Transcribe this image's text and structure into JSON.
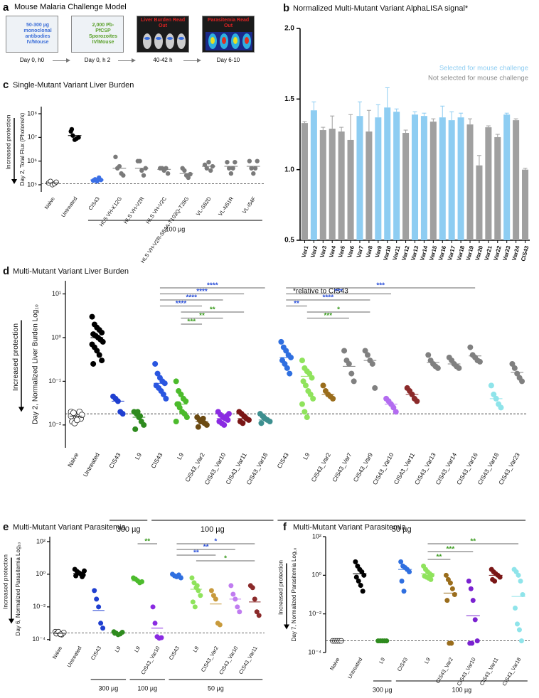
{
  "diagram": {
    "panel": "a",
    "title": "Mouse Malaria Challenge Model",
    "steps": [
      {
        "text": "50-300 µg monoclonal antibodies IV/Mouse",
        "time": "Day 0, h0"
      },
      {
        "text": "2,000 Pb-PfCSP Sporozoites IV/Mouse",
        "time": "Day 0, h 2"
      },
      {
        "text": "Liver Burden Read Out",
        "time": "40-42 h"
      },
      {
        "text": "Parasitemia Read Out",
        "time": "Day 6-10"
      }
    ]
  },
  "chart_data": [
    {
      "type": "bar",
      "panel": "b",
      "title": "Normalized Multi-Mutant Variant AlphaLISA signal*",
      "categories": [
        "Var1",
        "Var2",
        "Var3",
        "Var4",
        "Var5",
        "Var6",
        "Var7",
        "Var8",
        "Var9",
        "Var10",
        "Var11",
        "Var12",
        "Var13",
        "Var14",
        "Var15",
        "Var16",
        "Var17",
        "Var18",
        "Var19",
        "Var20",
        "Var21",
        "Var22",
        "Var23",
        "Var24",
        "CIS43"
      ],
      "values": [
        1.33,
        1.42,
        1.28,
        1.29,
        1.27,
        1.21,
        1.38,
        1.27,
        1.37,
        1.44,
        1.41,
        1.26,
        1.39,
        1.38,
        1.34,
        1.37,
        1.35,
        1.37,
        1.32,
        1.03,
        1.3,
        1.23,
        1.39,
        1.35,
        1.0
      ],
      "errors": [
        0.01,
        0.06,
        0.02,
        0.09,
        0.03,
        0.18,
        0.1,
        0.15,
        0.09,
        0.14,
        0.02,
        0.02,
        0.02,
        0.02,
        0.02,
        0.08,
        0.06,
        0.03,
        0.04,
        0.07,
        0.01,
        0.02,
        0.01,
        0.01,
        0.01
      ],
      "colors": [
        "#a0a0a0",
        "#8ecdf2",
        "#a0a0a0",
        "#a0a0a0",
        "#a0a0a0",
        "#a0a0a0",
        "#8ecdf2",
        "#a0a0a0",
        "#8ecdf2",
        "#8ecdf2",
        "#8ecdf2",
        "#a0a0a0",
        "#8ecdf2",
        "#8ecdf2",
        "#a0a0a0",
        "#8ecdf2",
        "#8ecdf2",
        "#8ecdf2",
        "#a0a0a0",
        "#a0a0a0",
        "#a0a0a0",
        "#a0a0a0",
        "#8ecdf2",
        "#a0a0a0",
        "#a0a0a0"
      ],
      "ylim": [
        0.5,
        2.0
      ],
      "yticks": [
        0.5,
        {
          "value": 1,
          "label": "1.0"
        },
        1.5,
        {
          "value": 2,
          "label": "2.0"
        }
      ],
      "legend": [
        {
          "name": "Selected for mouse challenge",
          "color": "#8ecdf2"
        },
        {
          "name": "Not selected for mouse challenge",
          "color": "#8a8a8a"
        }
      ],
      "footnote": "*relative to CIS43"
    },
    {
      "type": "strip",
      "panel": "c",
      "title": "Single-Mutant Variant Liver Burden",
      "ylabel": "Day 2, Total Flux (Photons/s)",
      "annotation": "Increased protection",
      "categories": [
        "Naive",
        "Untreated",
        "CIS43",
        "HLS VH-K12G",
        "HLS VH-V2R",
        "HLS VH-V2C",
        "HLS VH-V2R-S84A-T103Q-T28G",
        "VL-S82D",
        "VL-N51R",
        "VL-I54F"
      ],
      "points": [
        [
          120000,
          140000,
          100000,
          110000,
          130000
        ],
        [
          18000000,
          12000000,
          8000000,
          9000000,
          10000000,
          22000000
        ],
        [
          150000,
          170000,
          140000,
          200000,
          160000
        ],
        [
          1500000,
          500000,
          600000,
          300000,
          250000
        ],
        [
          1000000,
          1000000,
          400000,
          250000,
          500000
        ],
        [
          500000,
          500000,
          400000,
          500000,
          300000
        ],
        [
          500000,
          400000,
          250000,
          200000,
          280000
        ],
        [
          700000,
          500000,
          900000,
          400000,
          600000
        ],
        [
          900000,
          500000,
          300000,
          500000,
          900000
        ],
        [
          1000000,
          500000,
          300000,
          500000,
          1000000
        ]
      ],
      "means": [
        120000,
        12000000,
        160000,
        500000,
        500000,
        450000,
        300000,
        600000,
        600000,
        600000
      ],
      "colors": [
        "#ffffff",
        "#000000",
        "#3b6fe6",
        "#7a7a7a",
        "#7a7a7a",
        "#7a7a7a",
        "#7a7a7a",
        "#7a7a7a",
        "#7a7a7a",
        "#7a7a7a"
      ],
      "log_y": true,
      "ylim": [
        50000,
        200000000
      ],
      "yticks": [
        {
          "value": 100000,
          "label": "10⁵"
        },
        {
          "value": 1000000,
          "label": "10⁶"
        },
        {
          "value": 10000000,
          "label": "10⁷"
        },
        {
          "value": 100000000,
          "label": "10⁸"
        }
      ],
      "threshold": 110000,
      "dose_groups": [
        {
          "label": "100 µg",
          "from": 2,
          "to": 9
        }
      ],
      "comparisons": []
    },
    {
      "type": "strip",
      "panel": "d",
      "title": "Multi-Mutant Variant Liver Burden",
      "ylabel": "Day 2, Normalized Liver Burden Log₁₀",
      "annotation": "Increased protection",
      "categories": [
        "Naive",
        "Untreated",
        "CIS43",
        "L9",
        "CIS43",
        "L9",
        "CIS43_Var2",
        "CIS43_Var10",
        "CIS43_Var11",
        "CIS43_Var18",
        "CIS43",
        "L9",
        "CIS43_Var2",
        "CIS43_Var7",
        "CIS43_Var9",
        "CIS43_Var10",
        "CIS43_Var11",
        "CIS43_Var13",
        "CIS43_Var14",
        "CIS43_Var16",
        "CIS43_Var18",
        "CIS43_Var23"
      ],
      "points": [
        [
          0.02,
          0.018,
          0.016,
          0.015,
          0.014,
          0.012,
          0.011,
          0.013,
          0.02,
          0.017,
          0.016,
          0.019
        ],
        [
          3,
          2,
          1.7,
          1.5,
          1.3,
          1.2,
          1.1,
          1,
          0.9,
          0.8,
          0.7,
          0.6,
          0.5,
          0.4,
          0.3,
          0.25
        ],
        [
          0.045,
          0.04,
          0.035,
          0.02,
          0.018
        ],
        [
          0.02,
          0.018,
          0.015,
          0.012,
          0.01,
          0.008,
          0.02,
          0.016
        ],
        [
          0.25,
          0.15,
          0.12,
          0.1,
          0.09,
          0.08,
          0.07,
          0.06,
          0.05,
          0.04
        ],
        [
          0.1,
          0.06,
          0.05,
          0.04,
          0.035,
          0.03,
          0.025,
          0.02,
          0.018,
          0.015,
          0.012,
          0.03
        ],
        [
          0.015,
          0.013,
          0.012,
          0.011,
          0.01,
          0.009,
          0.012,
          0.014
        ],
        [
          0.02,
          0.017,
          0.015,
          0.014,
          0.013,
          0.012,
          0.011,
          0.01,
          0.016,
          0.018
        ],
        [
          0.02,
          0.018,
          0.016,
          0.014,
          0.013,
          0.012,
          0.011,
          0.015
        ],
        [
          0.018,
          0.016,
          0.014,
          0.013,
          0.012,
          0.011,
          0.015
        ],
        [
          0.8,
          0.6,
          0.5,
          0.4,
          0.35,
          0.3,
          0.25,
          0.2,
          0.15
        ],
        [
          0.3,
          0.2,
          0.17,
          0.15,
          0.12,
          0.1,
          0.08,
          0.06,
          0.05,
          0.04,
          0.03,
          0.02,
          0.015
        ],
        [
          0.08,
          0.06,
          0.05,
          0.045,
          0.04
        ],
        [
          0.5,
          0.3,
          0.25,
          0.15,
          0.1
        ],
        [
          0.5,
          0.4,
          0.3,
          0.25,
          0.07
        ],
        [
          0.04,
          0.035,
          0.03,
          0.025,
          0.02
        ],
        [
          0.07,
          0.06,
          0.05,
          0.04,
          0.035
        ],
        [
          0.4,
          0.3,
          0.25,
          0.22,
          0.2
        ],
        [
          0.35,
          0.3,
          0.25,
          0.22,
          0.2
        ],
        [
          0.6,
          0.4,
          0.35,
          0.3,
          0.28
        ],
        [
          0.08,
          0.05,
          0.04,
          0.03,
          0.025
        ],
        [
          0.25,
          0.2,
          0.15,
          0.12,
          0.1
        ]
      ],
      "means": [
        0.016,
        1.0,
        0.035,
        0.015,
        0.09,
        0.03,
        0.012,
        0.014,
        0.014,
        0.013,
        0.35,
        0.13,
        0.05,
        0.22,
        0.3,
        0.03,
        0.05,
        0.27,
        0.25,
        0.38,
        0.04,
        0.16
      ],
      "colors": [
        "#ffffff",
        "#000000",
        "#1f3fd0",
        "#2e8b1e",
        "#2a56e0",
        "#4cbb2c",
        "#6b4a12",
        "#8a2be2",
        "#7a1616",
        "#3d8f8f",
        "#2f6fe0",
        "#8fe35c",
        "#9a6d1c",
        "#808080",
        "#808080",
        "#b36cf0",
        "#8b2a2a",
        "#808080",
        "#808080",
        "#808080",
        "#8fe4ea",
        "#808080"
      ],
      "log_y": true,
      "ylim": [
        0.003,
        20
      ],
      "yticks": [
        {
          "value": 10,
          "label": "10¹"
        },
        {
          "value": 1,
          "label": "10⁰"
        },
        {
          "value": 0.1,
          "label": "10⁻¹"
        },
        {
          "value": 0.01,
          "label": "10⁻²"
        }
      ],
      "threshold": 0.018,
      "dose_groups": [
        {
          "label": "300 µg",
          "from": 2,
          "to": 3
        },
        {
          "label": "100 µg",
          "from": 4,
          "to": 9
        },
        {
          "label": "50 µg",
          "from": 10,
          "to": 21
        }
      ],
      "comparisons": [
        {
          "from": 4,
          "to": 9,
          "label": "****",
          "color": "#2a4fd8"
        },
        {
          "from": 4,
          "to": 8,
          "label": "****",
          "color": "#2a4fd8"
        },
        {
          "from": 4,
          "to": 7,
          "label": "****",
          "color": "#2a4fd8"
        },
        {
          "from": 4,
          "to": 6,
          "label": "****",
          "color": "#2a4fd8"
        },
        {
          "from": 5,
          "to": 8,
          "label": "**",
          "color": "#3a9a1e"
        },
        {
          "from": 5,
          "to": 7,
          "label": "**",
          "color": "#3a9a1e"
        },
        {
          "from": 5,
          "to": 6,
          "label": "***",
          "color": "#3a9a1e"
        },
        {
          "from": 10,
          "to": 19,
          "label": "***",
          "color": "#2a4fd8"
        },
        {
          "from": 10,
          "to": 15,
          "label": "***",
          "color": "#2a4fd8"
        },
        {
          "from": 10,
          "to": 14,
          "label": "****",
          "color": "#2a4fd8"
        },
        {
          "from": 10,
          "to": 11,
          "label": "**",
          "color": "#2a4fd8"
        },
        {
          "from": 11,
          "to": 14,
          "label": "*",
          "color": "#3a9a1e"
        },
        {
          "from": 11,
          "to": 13,
          "label": "***",
          "color": "#3a9a1e"
        }
      ]
    },
    {
      "type": "strip",
      "panel": "e",
      "title": "Multi-Mutant Variant Parasitemia",
      "ylabel": "Day 6, Normalized Parasitemia Log₁₀",
      "annotation": "Increased protection",
      "categories": [
        "Naive",
        "Untreated",
        "CIS43",
        "L9",
        "L9",
        "CIS43_Var10",
        "CIS43",
        "L9",
        "CIS43_Var2",
        "CIS43_Var10",
        "CIS43_Var11"
      ],
      "points": [
        [
          0.0003,
          0.00025,
          0.00022,
          0.0002,
          0.00027,
          0.00023,
          0.0003,
          0.00021
        ],
        [
          2,
          1.5,
          1.2,
          1,
          0.9,
          0.8,
          1.3,
          1.1,
          0.7,
          1.6
        ],
        [
          0.1,
          0.03,
          0.01,
          0.001,
          0.0005
        ],
        [
          0.0003,
          0.00025,
          0.0002,
          0.00022,
          0.00028,
          0.00024
        ],
        [
          0.6,
          0.5,
          0.4,
          0.3,
          0.35
        ],
        [
          0.01,
          0.001,
          0.00015,
          0.00012,
          0.00013
        ],
        [
          1,
          0.8,
          0.7,
          0.9,
          0.6
        ],
        [
          0.6,
          0.3,
          0.15,
          0.1,
          0.05,
          0.02,
          0.01,
          0.2
        ],
        [
          0.1,
          0.05,
          0.03,
          0.001,
          0.0008
        ],
        [
          0.2,
          0.06,
          0.03,
          0.01,
          0.005
        ],
        [
          0.2,
          0.15,
          0.03,
          0.005,
          0.003
        ]
      ],
      "means": [
        0.00024,
        1.1,
        0.006,
        0.00024,
        0.4,
        0.0005,
        0.8,
        0.12,
        0.015,
        0.03,
        0.02
      ],
      "colors": [
        "#ffffff",
        "#000000",
        "#1f3fd0",
        "#2e8b1e",
        "#4cbb2c",
        "#8a2be2",
        "#2f6fe0",
        "#8fe35c",
        "#c89a3c",
        "#c07cf0",
        "#8b2a2a"
      ],
      "log_y": true,
      "ylim": [
        8e-05,
        200
      ],
      "yticks": [
        {
          "value": 100,
          "label": "10²"
        },
        {
          "value": 1,
          "label": "10⁰"
        },
        {
          "value": 0.01,
          "label": "10⁻²"
        },
        {
          "value": 0.0001,
          "label": "10⁻⁴"
        }
      ],
      "threshold": 0.00025,
      "dose_groups": [
        {
          "label": "300 µg",
          "from": 2,
          "to": 3
        },
        {
          "label": "100 µg",
          "from": 4,
          "to": 5
        },
        {
          "label": "50 µg",
          "from": 6,
          "to": 10
        }
      ],
      "comparisons": [
        {
          "from": 4,
          "to": 5,
          "label": "**",
          "color": "#3a9a1e"
        },
        {
          "from": 6,
          "to": 10,
          "label": "*",
          "color": "#2a4fd8"
        },
        {
          "from": 6,
          "to": 9,
          "label": "**",
          "color": "#2a4fd8"
        },
        {
          "from": 6,
          "to": 8,
          "label": "**",
          "color": "#2a4fd8"
        },
        {
          "from": 7,
          "to": 10,
          "label": "*",
          "color": "#3a9a1e"
        }
      ]
    },
    {
      "type": "strip",
      "panel": "f",
      "title": "Multi-Mutant Variant Parasitemia",
      "ylabel": "Day 7, Normalized Parasitemia Log₁₀",
      "annotation": "Increased protection",
      "categories": [
        "Naive",
        "Untreated",
        "L9",
        "CIS43",
        "L9",
        "CIS43_Var2",
        "CIS43_Var10",
        "CIS43_Var11",
        "CIS43_Var18"
      ],
      "points": [
        [
          0.0004,
          0.0004,
          0.0004,
          0.0004,
          0.0004
        ],
        [
          5,
          3,
          2,
          1.5,
          1,
          0.8,
          0.5,
          0.3,
          0.15
        ],
        [
          0.0004,
          0.0004,
          0.0004,
          0.0004,
          0.0004
        ],
        [
          5,
          3,
          2.5,
          2,
          1.5,
          0.5,
          0.15
        ],
        [
          3,
          2,
          1.5,
          1.2,
          1,
          0.9,
          0.8,
          0.7,
          0.6
        ],
        [
          1,
          0.6,
          0.4,
          0.2,
          0.1,
          0.05,
          0.0003,
          0.0003
        ],
        [
          0.5,
          0.2,
          0.05,
          0.005,
          0.0004,
          0.0003,
          0.0003
        ],
        [
          2,
          1.5,
          1.2,
          1,
          0.8,
          0.6,
          0.5
        ],
        [
          2,
          1.5,
          1,
          0.5,
          0.1,
          0.02,
          0.003,
          0.0015,
          0.0004
        ]
      ],
      "means": [
        0.0004,
        1.2,
        0.0004,
        2,
        1.2,
        0.12,
        0.008,
        1,
        0.08
      ],
      "colors": [
        "#ffffff",
        "#000000",
        "#2e8b1e",
        "#2f6fe0",
        "#8fe35c",
        "#9a6d1c",
        "#7a22d0",
        "#7a1616",
        "#8fe4ea"
      ],
      "log_y": true,
      "ylim": [
        0.0001,
        100
      ],
      "yticks": [
        {
          "value": 100,
          "label": "10²"
        },
        {
          "value": 1,
          "label": "10⁰"
        },
        {
          "value": 0.01,
          "label": "10⁻²"
        },
        {
          "value": 0.0001,
          "label": "10⁻⁴"
        }
      ],
      "threshold": 0.0004,
      "dose_groups": [
        {
          "label": "300 µg",
          "from": 2,
          "to": 2
        },
        {
          "label": "100 µg",
          "from": 3,
          "to": 8
        }
      ],
      "comparisons": [
        {
          "from": 4,
          "to": 8,
          "label": "**",
          "color": "#3a9a1e"
        },
        {
          "from": 4,
          "to": 6,
          "label": "***",
          "color": "#3a9a1e"
        },
        {
          "from": 4,
          "to": 5,
          "label": "**",
          "color": "#3a9a1e"
        }
      ]
    }
  ]
}
